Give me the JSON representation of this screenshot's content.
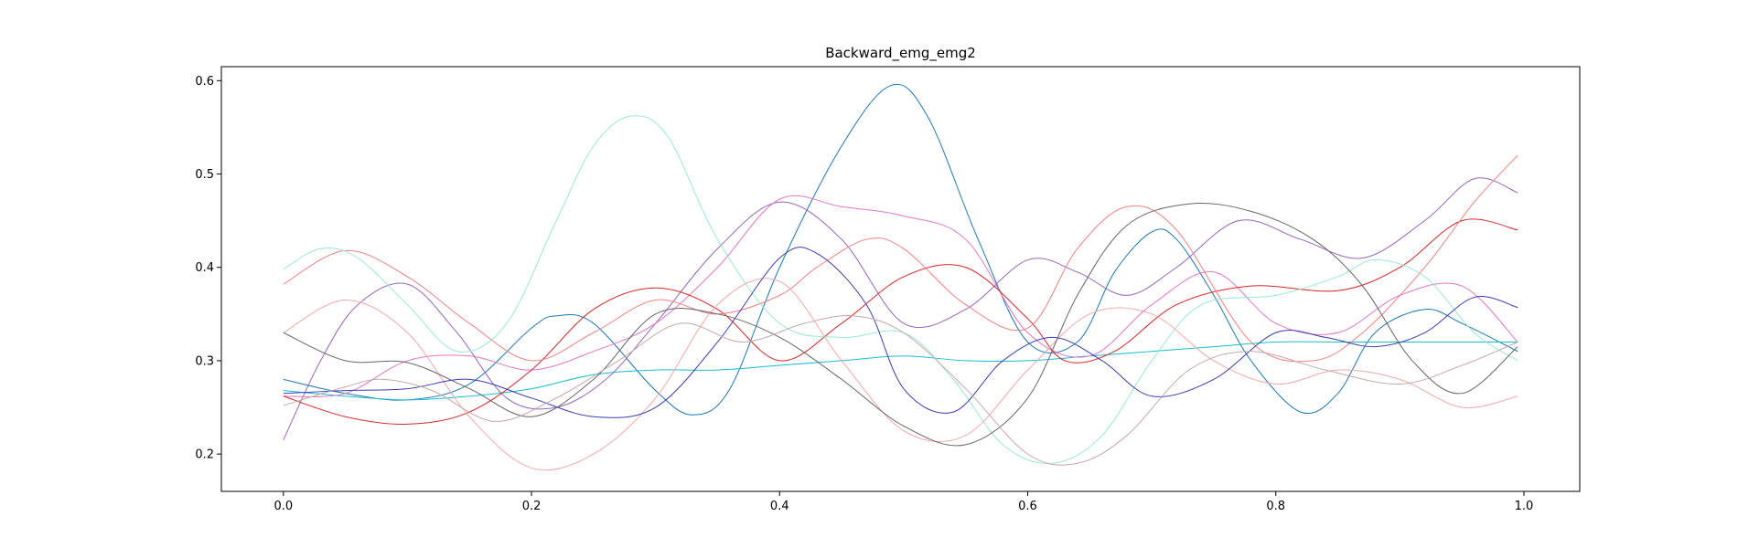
{
  "chart_data": {
    "type": "line",
    "title": "Backward_emg_emg2",
    "xlabel": "",
    "ylabel": "",
    "xlim": [
      -0.05,
      1.045
    ],
    "ylim": [
      0.16,
      0.615
    ],
    "xticks": [
      0.0,
      0.2,
      0.4,
      0.6,
      0.8,
      1.0
    ],
    "xtick_labels": [
      "0.0",
      "0.2",
      "0.4",
      "0.6",
      "0.8",
      "1.0"
    ],
    "yticks": [
      0.2,
      0.3,
      0.4,
      0.5,
      0.6
    ],
    "ytick_labels": [
      "0.2",
      "0.3",
      "0.4",
      "0.5",
      "0.6"
    ],
    "grid": false,
    "legend": false,
    "series": [
      {
        "color": "#1f77b4",
        "x": [
          0.0,
          0.05,
          0.1,
          0.15,
          0.2,
          0.22,
          0.25,
          0.3,
          0.33,
          0.36,
          0.4,
          0.45,
          0.49,
          0.52,
          0.56,
          0.6,
          0.64,
          0.67,
          0.7,
          0.72,
          0.75,
          0.78,
          0.82,
          0.85,
          0.88,
          0.92,
          0.95,
          0.995
        ],
        "y": [
          0.28,
          0.265,
          0.258,
          0.275,
          0.335,
          0.348,
          0.34,
          0.268,
          0.242,
          0.27,
          0.4,
          0.53,
          0.595,
          0.56,
          0.43,
          0.32,
          0.32,
          0.395,
          0.438,
          0.43,
          0.37,
          0.3,
          0.245,
          0.265,
          0.33,
          0.355,
          0.34,
          0.31
        ]
      },
      {
        "color": "#17becf",
        "x": [
          0.0,
          0.05,
          0.1,
          0.15,
          0.2,
          0.25,
          0.3,
          0.35,
          0.4,
          0.45,
          0.5,
          0.55,
          0.6,
          0.65,
          0.7,
          0.75,
          0.8,
          0.85,
          0.9,
          0.95,
          0.995
        ],
        "y": [
          0.268,
          0.262,
          0.258,
          0.262,
          0.27,
          0.285,
          0.29,
          0.29,
          0.295,
          0.3,
          0.305,
          0.3,
          0.3,
          0.305,
          0.31,
          0.315,
          0.32,
          0.32,
          0.32,
          0.32,
          0.32
        ]
      },
      {
        "color": "#9467bd",
        "x": [
          0.0,
          0.03,
          0.06,
          0.1,
          0.14,
          0.18,
          0.22,
          0.26,
          0.3,
          0.35,
          0.4,
          0.45,
          0.5,
          0.55,
          0.6,
          0.64,
          0.68,
          0.72,
          0.77,
          0.82,
          0.87,
          0.92,
          0.96,
          0.995
        ],
        "y": [
          0.215,
          0.3,
          0.36,
          0.382,
          0.33,
          0.26,
          0.25,
          0.28,
          0.34,
          0.42,
          0.47,
          0.43,
          0.34,
          0.355,
          0.408,
          0.395,
          0.37,
          0.4,
          0.45,
          0.43,
          0.41,
          0.45,
          0.495,
          0.48
        ]
      },
      {
        "color": "#e377c2",
        "x": [
          0.0,
          0.05,
          0.1,
          0.15,
          0.2,
          0.25,
          0.3,
          0.35,
          0.4,
          0.45,
          0.5,
          0.55,
          0.6,
          0.65,
          0.7,
          0.75,
          0.8,
          0.85,
          0.9,
          0.95,
          0.995
        ],
        "y": [
          0.262,
          0.265,
          0.3,
          0.305,
          0.29,
          0.31,
          0.34,
          0.4,
          0.473,
          0.465,
          0.455,
          0.43,
          0.33,
          0.305,
          0.36,
          0.395,
          0.34,
          0.33,
          0.37,
          0.38,
          0.32
        ]
      },
      {
        "color": "#d62728",
        "x": [
          0.0,
          0.05,
          0.1,
          0.15,
          0.2,
          0.25,
          0.3,
          0.35,
          0.4,
          0.45,
          0.5,
          0.55,
          0.6,
          0.63,
          0.67,
          0.72,
          0.78,
          0.85,
          0.9,
          0.95,
          0.995
        ],
        "y": [
          0.262,
          0.24,
          0.232,
          0.245,
          0.29,
          0.355,
          0.378,
          0.355,
          0.3,
          0.34,
          0.39,
          0.4,
          0.345,
          0.3,
          0.31,
          0.36,
          0.38,
          0.375,
          0.4,
          0.45,
          0.44
        ]
      },
      {
        "color": "#f08080",
        "x": [
          0.0,
          0.05,
          0.1,
          0.15,
          0.2,
          0.25,
          0.3,
          0.35,
          0.4,
          0.43,
          0.47,
          0.5,
          0.55,
          0.6,
          0.64,
          0.68,
          0.72,
          0.78,
          0.83,
          0.87,
          0.92,
          0.96,
          0.995
        ],
        "y": [
          0.382,
          0.418,
          0.39,
          0.34,
          0.3,
          0.33,
          0.365,
          0.35,
          0.37,
          0.4,
          0.43,
          0.42,
          0.36,
          0.335,
          0.42,
          0.465,
          0.44,
          0.32,
          0.3,
          0.33,
          0.4,
          0.47,
          0.52
        ]
      },
      {
        "color": "#98e8d0",
        "x": [
          0.0,
          0.03,
          0.06,
          0.1,
          0.14,
          0.18,
          0.22,
          0.25,
          0.28,
          0.31,
          0.35,
          0.4,
          0.45,
          0.5,
          0.54,
          0.58,
          0.62,
          0.66,
          0.7,
          0.74,
          0.8,
          0.85,
          0.88,
          0.92,
          0.96,
          0.995
        ],
        "y": [
          0.398,
          0.42,
          0.41,
          0.36,
          0.31,
          0.34,
          0.45,
          0.53,
          0.562,
          0.54,
          0.43,
          0.34,
          0.325,
          0.33,
          0.28,
          0.21,
          0.19,
          0.22,
          0.3,
          0.36,
          0.37,
          0.39,
          0.408,
          0.39,
          0.33,
          0.3
        ]
      },
      {
        "color": "#f4a7a7",
        "x": [
          0.0,
          0.05,
          0.1,
          0.15,
          0.2,
          0.25,
          0.3,
          0.35,
          0.4,
          0.45,
          0.5,
          0.55,
          0.6,
          0.65,
          0.7,
          0.75,
          0.8,
          0.85,
          0.9,
          0.95,
          0.995
        ],
        "y": [
          0.33,
          0.365,
          0.33,
          0.24,
          0.185,
          0.2,
          0.26,
          0.36,
          0.385,
          0.3,
          0.225,
          0.22,
          0.29,
          0.35,
          0.35,
          0.3,
          0.275,
          0.29,
          0.28,
          0.25,
          0.262
        ]
      },
      {
        "color": "#3b3bb0",
        "x": [
          0.0,
          0.05,
          0.1,
          0.15,
          0.2,
          0.25,
          0.3,
          0.35,
          0.4,
          0.43,
          0.47,
          0.5,
          0.54,
          0.58,
          0.62,
          0.66,
          0.7,
          0.75,
          0.8,
          0.84,
          0.88,
          0.92,
          0.96,
          0.995
        ],
        "y": [
          0.265,
          0.268,
          0.27,
          0.28,
          0.26,
          0.24,
          0.25,
          0.32,
          0.41,
          0.415,
          0.36,
          0.27,
          0.245,
          0.3,
          0.325,
          0.3,
          0.262,
          0.28,
          0.33,
          0.325,
          0.315,
          0.33,
          0.368,
          0.357
        ]
      },
      {
        "color": "#666666",
        "x": [
          0.0,
          0.05,
          0.1,
          0.15,
          0.2,
          0.25,
          0.3,
          0.35,
          0.4,
          0.45,
          0.5,
          0.55,
          0.6,
          0.64,
          0.68,
          0.73,
          0.78,
          0.83,
          0.87,
          0.91,
          0.95,
          0.995
        ],
        "y": [
          0.33,
          0.3,
          0.298,
          0.27,
          0.24,
          0.28,
          0.35,
          0.35,
          0.325,
          0.28,
          0.23,
          0.21,
          0.26,
          0.37,
          0.445,
          0.468,
          0.46,
          0.43,
          0.38,
          0.3,
          0.265,
          0.315
        ]
      },
      {
        "color": "#c7a8a8",
        "x": [
          0.0,
          0.05,
          0.08,
          0.12,
          0.17,
          0.22,
          0.27,
          0.32,
          0.37,
          0.42,
          0.46,
          0.5,
          0.55,
          0.6,
          0.64,
          0.68,
          0.73,
          0.78,
          0.84,
          0.9,
          0.95,
          0.995
        ],
        "y": [
          0.252,
          0.272,
          0.28,
          0.268,
          0.235,
          0.26,
          0.3,
          0.34,
          0.32,
          0.34,
          0.348,
          0.33,
          0.27,
          0.2,
          0.19,
          0.22,
          0.29,
          0.31,
          0.29,
          0.275,
          0.295,
          0.32
        ]
      }
    ]
  }
}
